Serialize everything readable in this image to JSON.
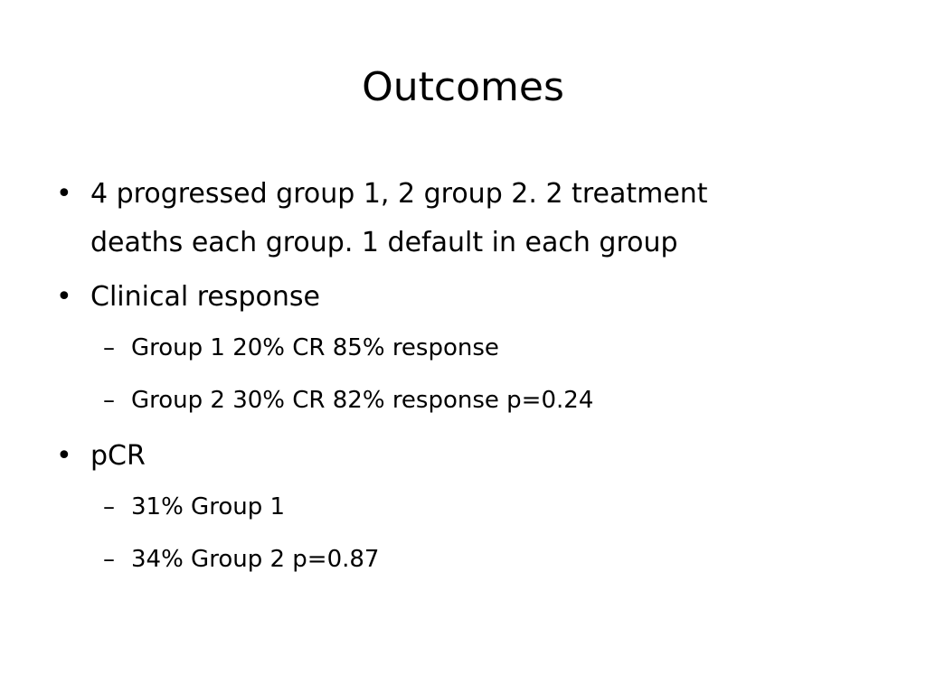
{
  "slide": {
    "title": "Outcomes",
    "bullet_glyph": "•",
    "dash_glyph": "–",
    "bullets": [
      {
        "line1": "4 progressed group 1, 2 group 2.  2 treatment",
        "line2": "deaths each group. 1 default in each group"
      },
      {
        "text": "Clinical response",
        "subs": [
          "Group 1 20% CR 85% response",
          "Group 2 30% CR 82% response p=0.24"
        ]
      },
      {
        "text": "pCR",
        "subs": [
          "31% Group 1",
          "34% Group 2  p=0.87"
        ]
      }
    ]
  }
}
